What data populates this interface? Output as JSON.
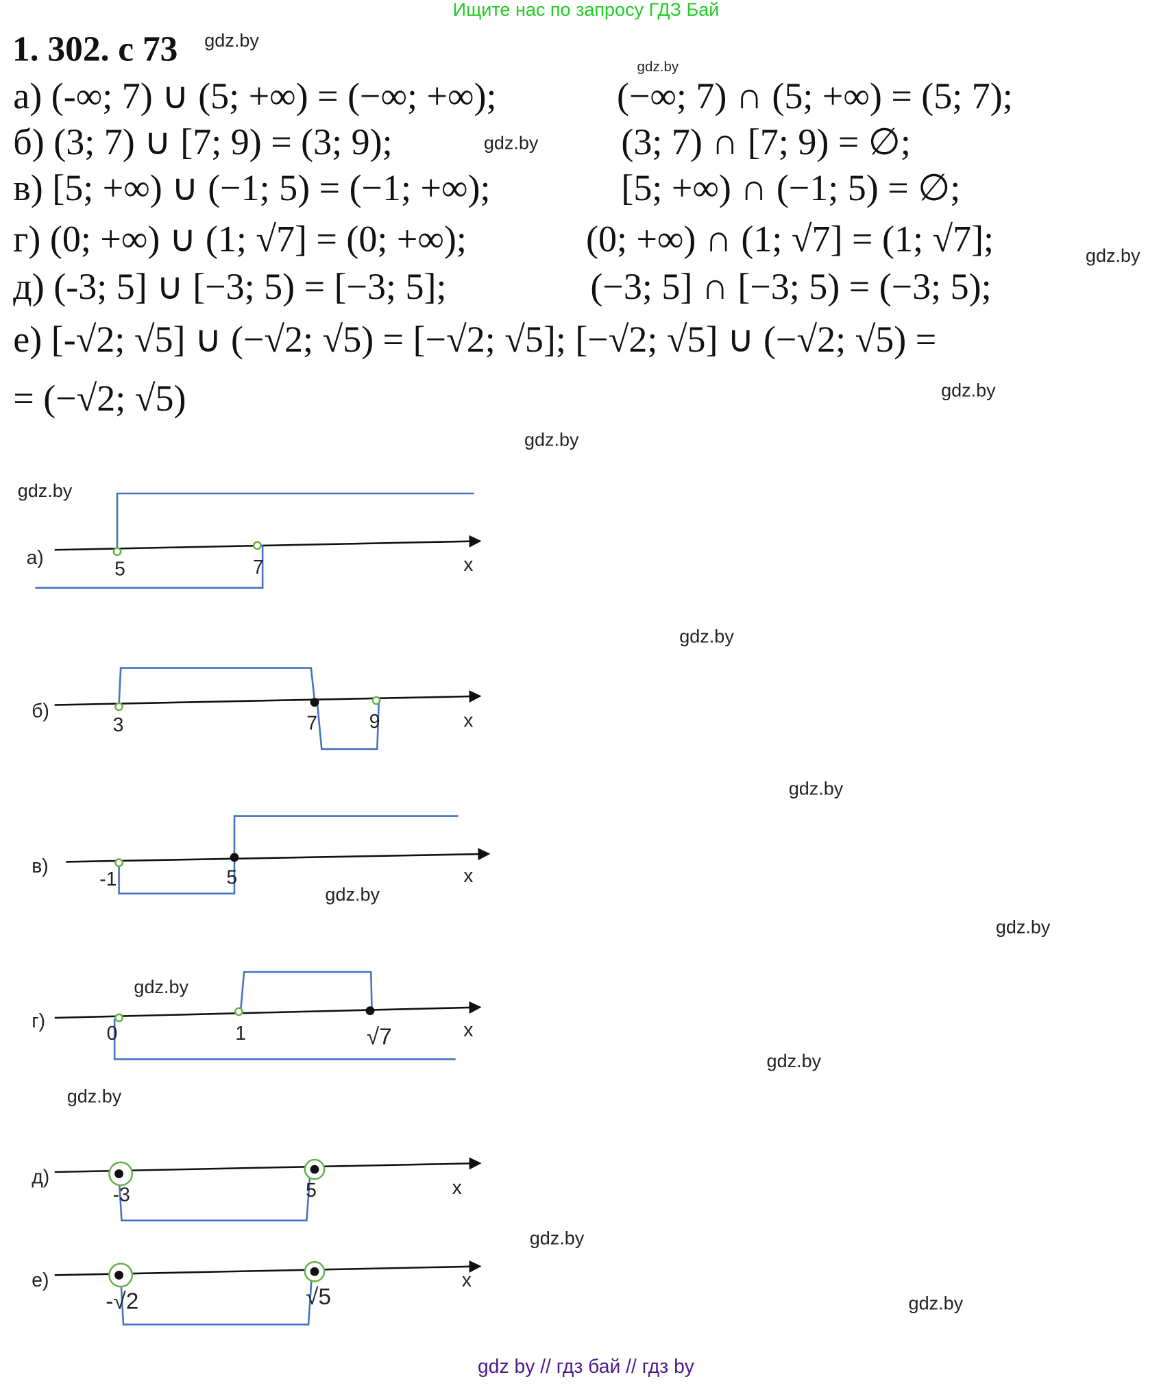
{
  "banner": "Ищите нас по запросу ГДЗ Бай",
  "title": "1. 302. с 73",
  "watermark": "gdz.by",
  "equations": [
    {
      "left": "а) (-∞; 7) ∪ (5; +∞) = (−∞; +∞);",
      "right": "(−∞;  7)  ∩ (5; +∞) = (5; 7);"
    },
    {
      "left": "б) (3; 7) ∪ [7; 9) = (3; 9);",
      "right": "(3; 7)  ∩ [7; 9) = ∅;"
    },
    {
      "left": "в) [5; +∞) ∪ (−1; 5) = (−1; +∞);",
      "right": "[5; +∞) ∩ (−1; 5) = ∅;"
    },
    {
      "left": "г) (0; +∞) ∪ (1; √7] = (0; +∞);",
      "right": "(0; +∞) ∩ (1; √7] = (1; √7];"
    },
    {
      "left": "д) (-3; 5] ∪ [−3; 5) = [−3; 5];",
      "right": "(−3;  5]  ∩ [−3; 5) = (−3; 5);"
    },
    {
      "left": "е) [-√2; √5] ∪ (−√2;  √5) = [−√2;  √5]; [−√2;  √5] ∪ (−√2;  √5) =",
      "right": ""
    },
    {
      "left": "= (−√2;  √5)",
      "right": ""
    }
  ],
  "diagrams": [
    {
      "label": "а)",
      "axis": "x",
      "points": [
        "5",
        "7"
      ]
    },
    {
      "label": "б)",
      "axis": "x",
      "points": [
        "3",
        "7",
        "9"
      ]
    },
    {
      "label": "в)",
      "axis": "x",
      "points": [
        "-1",
        "5"
      ]
    },
    {
      "label": "г)",
      "axis": "x",
      "points": [
        "0",
        "1",
        "√7"
      ]
    },
    {
      "label": "д)",
      "axis": "x",
      "points": [
        "-3",
        "5"
      ]
    },
    {
      "label": "е)",
      "axis": "x",
      "points": [
        "-√2",
        "√5"
      ]
    }
  ],
  "footer": "gdz by  //  гдз бай  //  гдз by",
  "colors": {
    "banner": "#22cc22",
    "interval_line": "#4472c4",
    "open_point": "#6ab04c",
    "footer": "#4b1a8c"
  }
}
